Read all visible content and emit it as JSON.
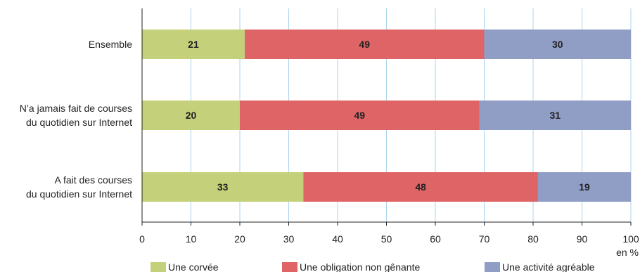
{
  "chart_data": {
    "type": "bar",
    "orientation": "horizontal",
    "stacked": true,
    "categories": [
      [
        "Ensemble"
      ],
      [
        "N’a jamais fait de courses",
        "du quotidien sur Internet"
      ],
      [
        "A fait des courses",
        "du quotidien sur Internet"
      ]
    ],
    "series": [
      {
        "name": "Une corvée",
        "color": "#c5d17a",
        "values": [
          21,
          20,
          33
        ]
      },
      {
        "name": "Une obligation non gênante",
        "color": "#df6466",
        "values": [
          49,
          49,
          48
        ]
      },
      {
        "name": "Une activité agréable",
        "color": "#909ec6",
        "values": [
          30,
          31,
          19
        ]
      }
    ],
    "xlim": [
      0,
      100
    ],
    "xticks": [
      0,
      10,
      20,
      30,
      40,
      50,
      60,
      70,
      80,
      90,
      100
    ],
    "x_unit": "en %",
    "grid": "vertical",
    "grid_color": "#a9d4ec",
    "legend_position": "bottom"
  }
}
